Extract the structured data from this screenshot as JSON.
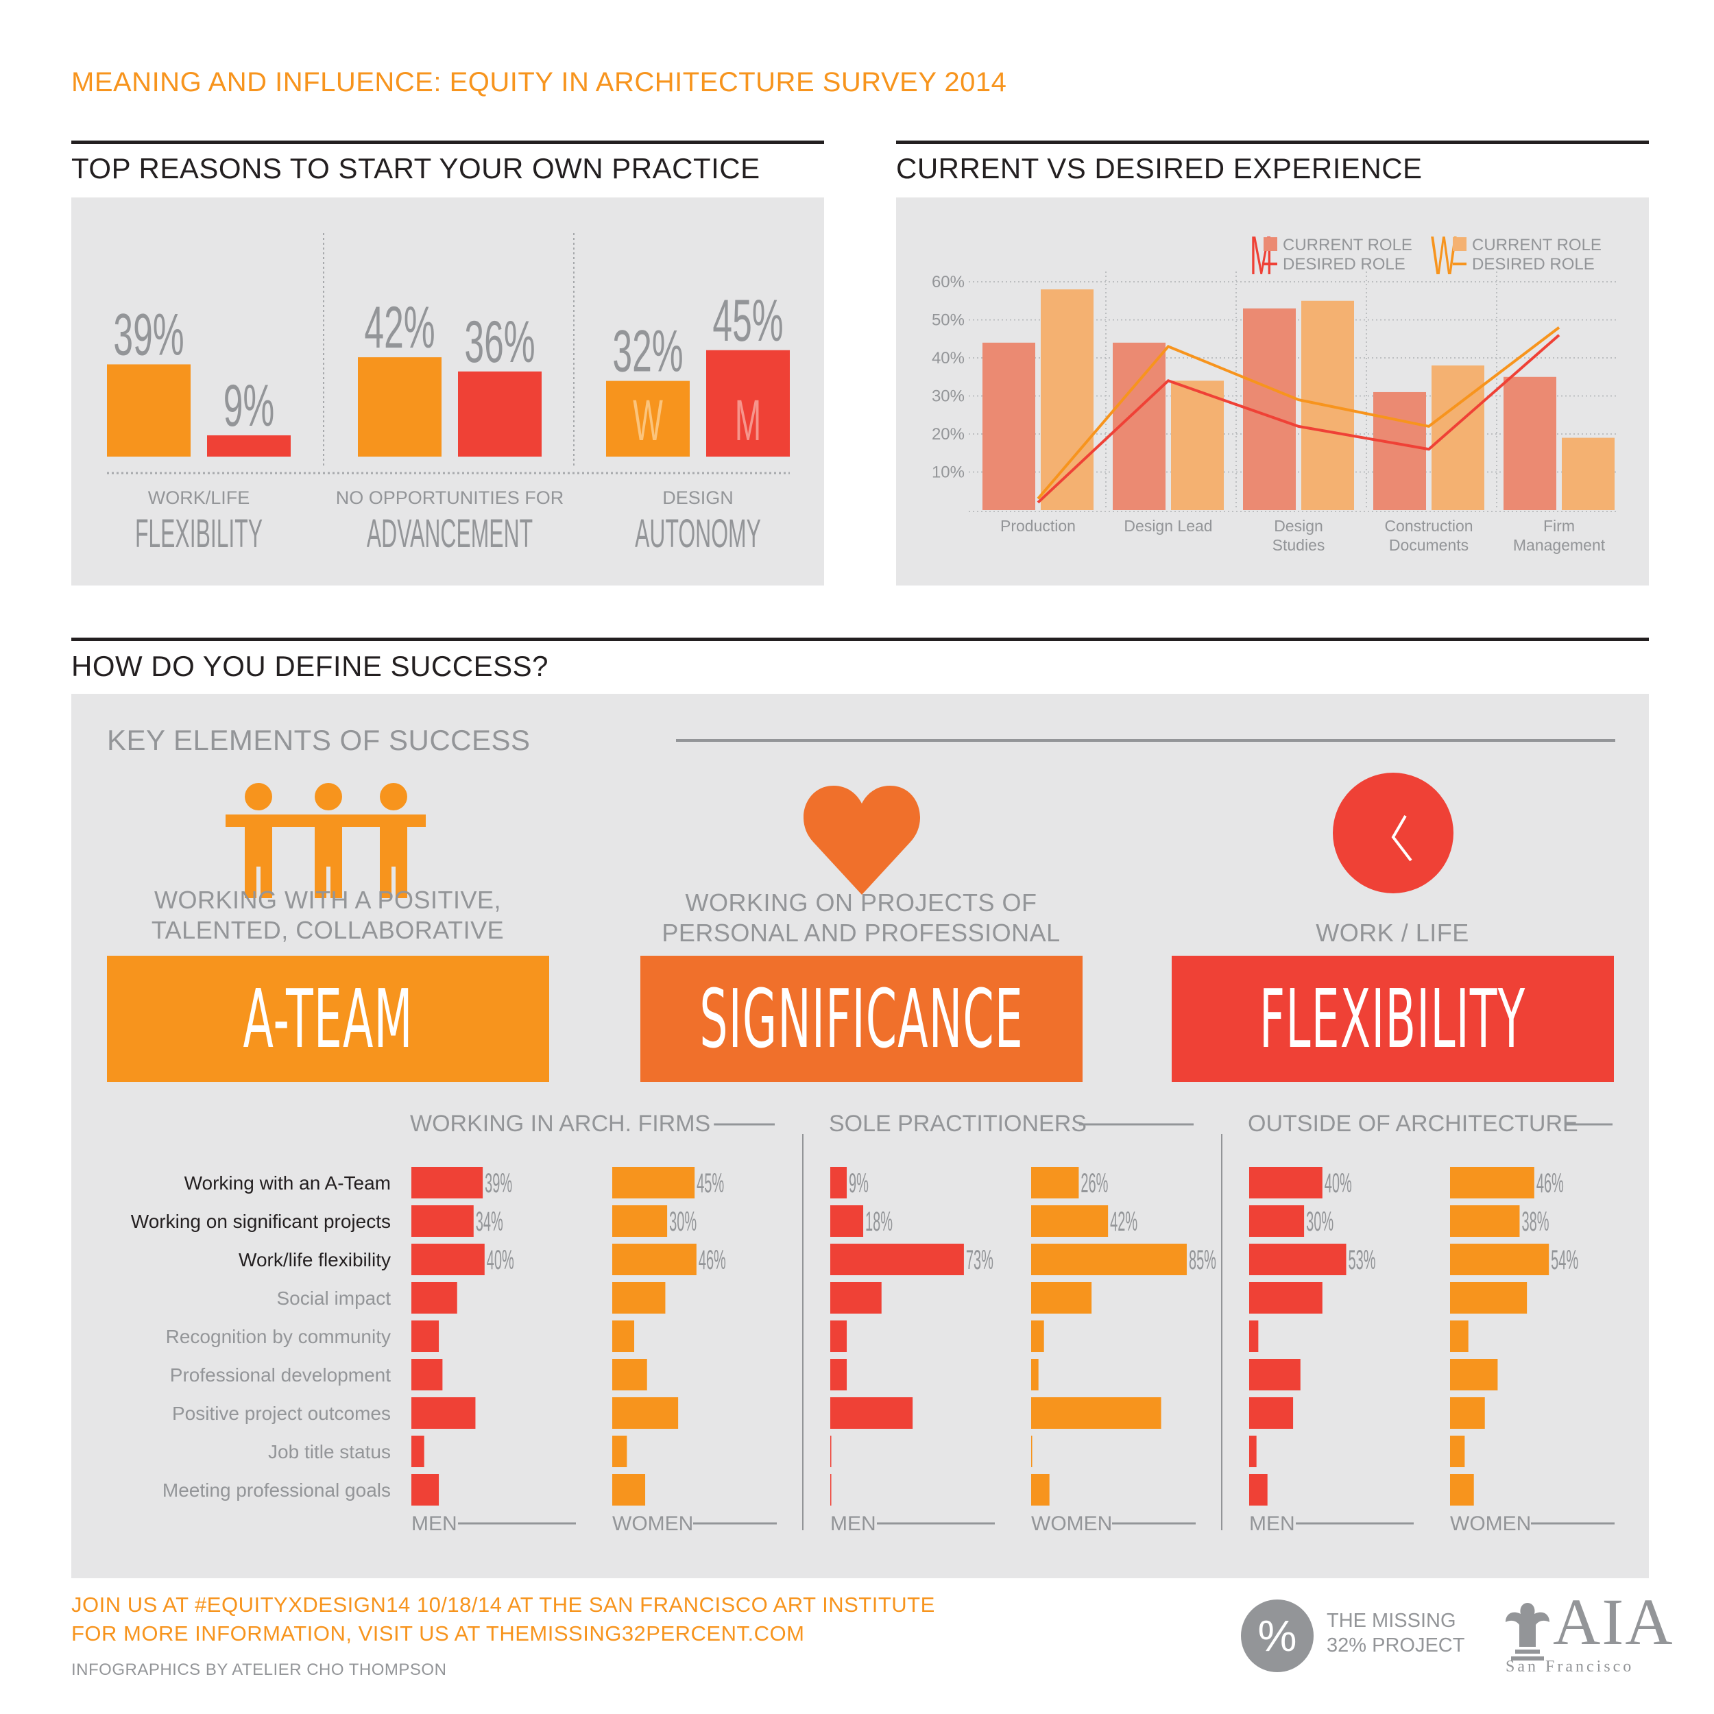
{
  "page_title": "MEANING AND INFLUENCE: EQUITY IN ARCHITECTURE SURVEY 2014",
  "sections": {
    "reasons_title": "TOP REASONS TO START YOUR OWN PRACTICE",
    "experience_title": "CURRENT VS DESIRED EXPERIENCE",
    "success_title": "HOW DO YOU DEFINE SUCCESS?"
  },
  "colors": {
    "orange": "#f7941d",
    "red": "#ef4136",
    "dark_orange": "#f0702b",
    "salmon": "#eb8a72",
    "light_orange": "#f4b171",
    "panel_gray": "#e6e6e7"
  },
  "chart_data": [
    {
      "type": "bar",
      "title": "TOP REASONS TO START YOUR OWN PRACTICE",
      "groups": [
        {
          "small_label": "WORK/LIFE",
          "big_label": "FLEXIBILITY",
          "bars": [
            {
              "value": 39,
              "label": "39%",
              "series": "W",
              "color": "#f7941d"
            },
            {
              "value": 9,
              "label": "9%",
              "series": "M",
              "color": "#ef4136"
            }
          ]
        },
        {
          "small_label": "NO OPPORTUNITIES FOR",
          "big_label": "ADVANCEMENT",
          "bars": [
            {
              "value": 42,
              "label": "42%",
              "series": "W",
              "color": "#f7941d"
            },
            {
              "value": 36,
              "label": "36%",
              "series": "M",
              "color": "#ef4136"
            }
          ]
        },
        {
          "small_label": "DESIGN",
          "big_label": "AUTONOMY",
          "bars": [
            {
              "value": 32,
              "label": "32%",
              "series": "W",
              "color": "#f7941d",
              "inner": "W"
            },
            {
              "value": 45,
              "label": "45%",
              "series": "M",
              "color": "#ef4136",
              "inner": "M"
            }
          ]
        }
      ]
    },
    {
      "type": "bar",
      "title": "CURRENT VS DESIRED EXPERIENCE",
      "categories": [
        "Production",
        "Design Lead",
        "Design Studies",
        "Construction Documents",
        "Firm Management"
      ],
      "category_lines": [
        [
          "Production"
        ],
        [
          "Design Lead"
        ],
        [
          "Design",
          "Studies"
        ],
        [
          "Construction",
          "Documents"
        ],
        [
          "Firm",
          "Management"
        ]
      ],
      "series": [
        {
          "group": "M",
          "name": "CURRENT ROLE",
          "kind": "bar",
          "color": "#eb8a72",
          "values": [
            44,
            44,
            53,
            31,
            35
          ]
        },
        {
          "group": "W",
          "name": "CURRENT ROLE",
          "kind": "bar",
          "color": "#f4b171",
          "values": [
            58,
            34,
            55,
            38,
            19
          ]
        },
        {
          "group": "M",
          "name": "DESIRED ROLE",
          "kind": "line",
          "color": "#ef4136",
          "values": [
            2,
            34,
            22,
            16,
            46
          ]
        },
        {
          "group": "W",
          "name": "DESIRED ROLE",
          "kind": "line",
          "color": "#f7941d",
          "values": [
            3,
            43,
            29,
            22,
            48
          ]
        }
      ],
      "legend": {
        "m_letter": "M",
        "w_letter": "W",
        "current": "CURRENT ROLE",
        "desired": "DESIRED ROLE",
        "placement": "top-right"
      },
      "yticks": [
        "60%",
        "50%",
        "40%",
        "30%",
        "20%",
        "10%"
      ],
      "ylim": [
        0,
        62
      ],
      "grid": true
    },
    {
      "type": "bar",
      "title": "KEY ELEMENTS OF SUCCESS",
      "orientation": "horizontal",
      "rows": [
        "Working with an A-Team",
        "Working on significant projects",
        "Work/life flexibility",
        "Social impact",
        "Recognition by community",
        "Professional development",
        "Positive project outcomes",
        "Job title status",
        "Meeting professional goals"
      ],
      "panels": [
        {
          "name": "WORKING IN ARCH. FIRMS",
          "men": [
            39,
            34,
            40,
            25,
            15,
            17,
            35,
            7,
            15
          ],
          "women": [
            45,
            30,
            46,
            29,
            12,
            19,
            36,
            8,
            18
          ]
        },
        {
          "name": "SOLE PRACTITIONERS",
          "men": [
            9,
            18,
            73,
            28,
            9,
            9,
            45,
            0.5,
            0.5
          ],
          "women": [
            26,
            42,
            85,
            33,
            7,
            4,
            71,
            0.5,
            10
          ]
        },
        {
          "name": "OUTSIDE OF ARCHITECTURE",
          "men": [
            40,
            30,
            53,
            40,
            5,
            28,
            24,
            4,
            10
          ],
          "women": [
            46,
            38,
            54,
            42,
            10,
            26,
            19,
            8,
            13
          ]
        }
      ],
      "labeled_rows": 3,
      "men_label": "MEN",
      "women_label": "WOMEN"
    }
  ],
  "success": {
    "heading": "KEY ELEMENTS OF SUCCESS",
    "elements": [
      {
        "desc1": "WORKING WITH A POSITIVE,",
        "desc2": "TALENTED, COLLABORATIVE",
        "banner": "A-TEAM",
        "icon": "people-icon"
      },
      {
        "desc1": "WORKING ON PROJECTS OF",
        "desc2": "PERSONAL AND PROFESSIONAL",
        "banner": "SIGNIFICANCE",
        "icon": "heart-icon"
      },
      {
        "desc1": "",
        "desc2": "WORK / LIFE",
        "banner": "FLEXIBILITY",
        "icon": "clock-icon"
      }
    ]
  },
  "footer": {
    "line1": "JOIN US AT #EQUITYXDESIGN14 10/18/14 AT THE SAN FRANCISCO ART INSTITUTE",
    "line2": "FOR MORE INFORMATION, VISIT US AT THEMISSING32PERCENT.COM",
    "credit": "INFOGRAPHICS BY ATELIER CHO THOMPSON",
    "missing_symbol": "%",
    "missing1": "THE MISSING",
    "missing2": "32% PROJECT",
    "aia": "AIA",
    "aia_sub": "San Francisco"
  }
}
